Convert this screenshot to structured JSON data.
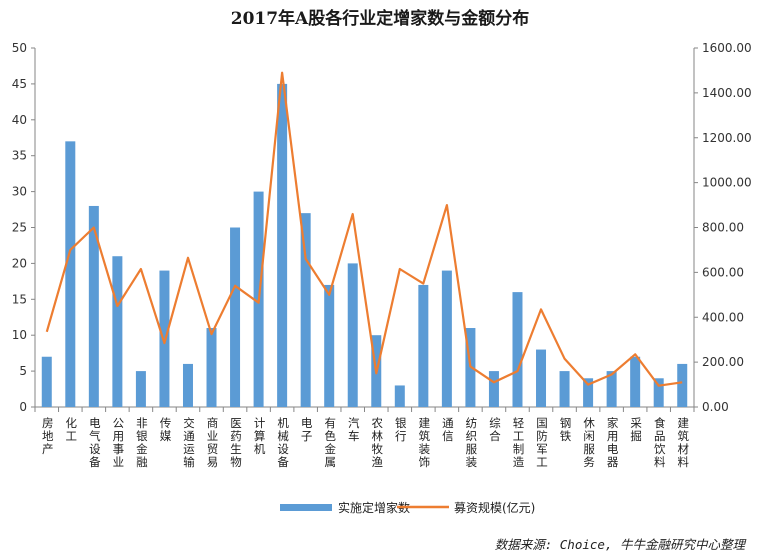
{
  "chart_data": {
    "type": "bar",
    "title": "2017年A股各行业定增家数与金额分布",
    "categories": [
      "房地产",
      "化工",
      "电气设备",
      "公用事业",
      "非银金融",
      "传媒",
      "交通运输",
      "商业贸易",
      "医药生物",
      "计算机",
      "机械设备",
      "电子",
      "有色金属",
      "汽车",
      "农林牧渔",
      "银行",
      "建筑装饰",
      "通信",
      "纺织服装",
      "综合",
      "轻工制造",
      "国防军工",
      "钢铁",
      "休闲服务",
      "家用电器",
      "采掘",
      "食品饮料",
      "建筑材料"
    ],
    "series": [
      {
        "name": "实施定增家数",
        "type": "bar",
        "axis": "left",
        "color": "#5b9bd5",
        "values": [
          7,
          37,
          28,
          21,
          5,
          19,
          6,
          11,
          25,
          30,
          45,
          27,
          17,
          20,
          10,
          3,
          17,
          19,
          11,
          5,
          16,
          8,
          5,
          4,
          5,
          7,
          4,
          6
        ]
      },
      {
        "name": "募资规模(亿元)",
        "type": "line",
        "axis": "right",
        "color": "#ed7d31",
        "values": [
          335,
          700,
          800,
          450,
          615,
          285,
          665,
          325,
          540,
          465,
          1490,
          660,
          500,
          860,
          150,
          615,
          550,
          900,
          180,
          110,
          160,
          435,
          215,
          100,
          145,
          235,
          95,
          110
        ]
      }
    ],
    "y_left": {
      "min": 0,
      "max": 50,
      "ticks": [
        "0",
        "5",
        "10",
        "15",
        "20",
        "25",
        "30",
        "35",
        "40",
        "45",
        "50"
      ]
    },
    "y_right": {
      "min": 0,
      "max": 1600,
      "ticks": [
        "0.00",
        "200.00",
        "400.00",
        "600.00",
        "800.00",
        "1000.00",
        "1200.00",
        "1400.00",
        "1600.00"
      ]
    },
    "grid": false,
    "legend_position": "bottom"
  },
  "source_note": "数据来源: Choice, 牛牛金融研究中心整理"
}
